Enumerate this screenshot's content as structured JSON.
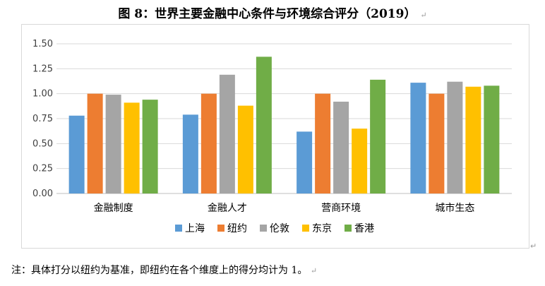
{
  "figure": {
    "title": "图 8：世界主要金融中心条件与环境综合评分（2019）",
    "paragraph_mark": "↵"
  },
  "footnote": {
    "text": "注：具体打分以纽约为基准，即纽约在各个维度上的得分均计为 1。",
    "paragraph_mark": "↵"
  },
  "chart_data": {
    "type": "bar",
    "title": "",
    "xlabel": "",
    "ylabel": "",
    "categories": [
      "金融制度",
      "金融人才",
      "营商环境",
      "城市生态"
    ],
    "ylim": [
      0,
      1.5
    ],
    "yticks": [
      "0.00",
      "0.25",
      "0.50",
      "0.75",
      "1.00",
      "1.25",
      "1.50"
    ],
    "ytick_values": [
      0,
      0.25,
      0.5,
      0.75,
      1.0,
      1.25,
      1.5
    ],
    "grid": true,
    "legend_position": "bottom",
    "series": [
      {
        "name": "上海",
        "color": "#5b9bd5",
        "values": [
          0.78,
          0.79,
          0.62,
          1.11
        ]
      },
      {
        "name": "纽约",
        "color": "#ed7d31",
        "values": [
          1.0,
          1.0,
          1.0,
          1.0
        ]
      },
      {
        "name": "伦敦",
        "color": "#a5a5a5",
        "values": [
          0.99,
          1.19,
          0.92,
          1.12
        ]
      },
      {
        "name": "东京",
        "color": "#ffc000",
        "values": [
          0.91,
          0.88,
          0.65,
          1.07
        ]
      },
      {
        "name": "香港",
        "color": "#70ad47",
        "values": [
          0.94,
          1.37,
          1.14,
          1.08
        ]
      }
    ]
  }
}
